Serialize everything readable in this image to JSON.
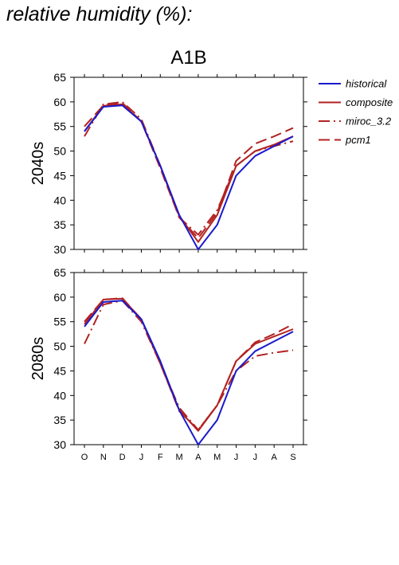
{
  "heading": "relative humidity (%):",
  "chart_data": {
    "type": "line",
    "title": "A1B",
    "xlabel": "",
    "ylabel": "",
    "x_categories": [
      "O",
      "N",
      "D",
      "J",
      "F",
      "M",
      "A",
      "M",
      "J",
      "J",
      "A",
      "S"
    ],
    "ylim": [
      30,
      65
    ],
    "y_ticks": [
      30,
      35,
      40,
      45,
      50,
      55,
      60,
      65
    ],
    "grid": false,
    "legend_position": "right",
    "legend": [
      {
        "name": "historical",
        "color": "#1a1acc",
        "dash": "solid"
      },
      {
        "name": "composite",
        "color": "#b22222",
        "dash": "solid"
      },
      {
        "name": "miroc_3.2",
        "color": "#b22222",
        "dash": "dashdot"
      },
      {
        "name": "pcm1",
        "color": "#b22222",
        "dash": "dashed"
      }
    ],
    "panels": [
      {
        "label": "2040s",
        "series": [
          {
            "name": "historical",
            "values": [
              54.0,
              59.0,
              59.3,
              56.0,
              47.0,
              37.0,
              30.0,
              35.0,
              45.0,
              49.0,
              51.0,
              53.0
            ]
          },
          {
            "name": "composite",
            "values": [
              54.0,
              59.2,
              59.5,
              56.0,
              47.0,
              36.8,
              31.5,
              37.0,
              47.0,
              50.0,
              51.3,
              53.0
            ]
          },
          {
            "name": "miroc_3.2",
            "values": [
              53.0,
              59.5,
              60.0,
              56.5,
              47.0,
              36.5,
              33.0,
              38.0,
              47.0,
              50.0,
              51.0,
              52.0
            ]
          },
          {
            "name": "pcm1",
            "values": [
              55.0,
              59.3,
              59.8,
              56.0,
              46.5,
              36.5,
              32.3,
              37.5,
              48.0,
              51.5,
              53.0,
              54.7
            ]
          }
        ]
      },
      {
        "label": "2080s",
        "series": [
          {
            "name": "historical",
            "values": [
              54.0,
              59.0,
              59.3,
              55.5,
              47.0,
              37.0,
              30.0,
              35.0,
              45.0,
              49.0,
              51.0,
              53.0
            ]
          },
          {
            "name": "composite",
            "values": [
              54.5,
              59.5,
              59.7,
              55.5,
              46.5,
              37.0,
              32.8,
              38.0,
              47.0,
              50.5,
              52.0,
              53.5
            ]
          },
          {
            "name": "miroc_3.2",
            "values": [
              50.5,
              58.5,
              59.3,
              55.0,
              46.5,
              37.5,
              33.0,
              38.0,
              45.0,
              48.0,
              48.7,
              49.2
            ]
          },
          {
            "name": "pcm1",
            "values": [
              55.0,
              59.5,
              59.8,
              55.5,
              46.5,
              36.8,
              33.0,
              38.0,
              47.0,
              50.8,
              52.5,
              54.5
            ]
          }
        ]
      }
    ]
  }
}
